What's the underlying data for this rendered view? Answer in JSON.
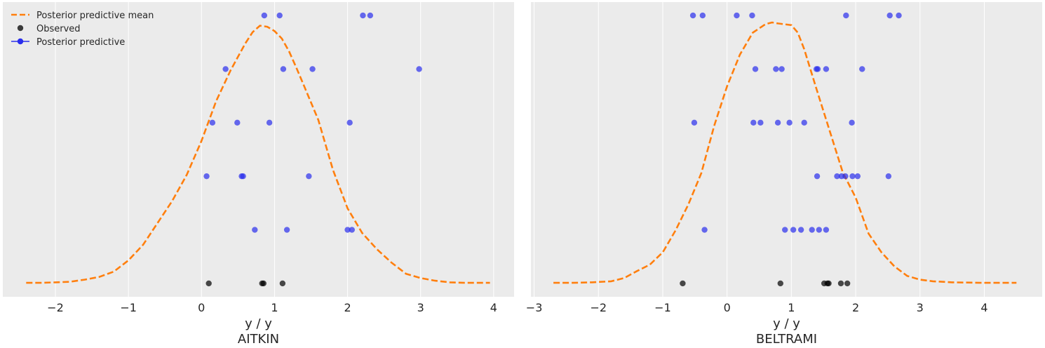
{
  "chart_data": [
    {
      "type": "scatter",
      "xlabel": "y / y",
      "title": "AITKIN",
      "xlim": [
        -2.72,
        4.28
      ],
      "ylim": [
        -0.25,
        5.25
      ],
      "xticks": [
        -2,
        -1,
        0,
        1,
        2,
        3,
        4
      ],
      "xtick_labels": [
        "−2",
        "−1",
        "0",
        "1",
        "2",
        "3",
        "4"
      ],
      "yticks": [],
      "grid": true,
      "background": "#ebebeb",
      "legend": {
        "placement": "top-left",
        "entries": [
          {
            "label": "Posterior predictive mean",
            "marker": "dashed-line",
            "color": "#ff7f0e"
          },
          {
            "label": "Observed",
            "marker": "dot",
            "color": "#000000"
          },
          {
            "label": "Posterior predictive",
            "marker": "line-dot",
            "color": "#2a2eec"
          }
        ]
      },
      "series": [
        {
          "name": "Posterior predictive mean",
          "kind": "line",
          "color": "#ff7f0e",
          "style": "dashed",
          "x": [
            -2.4,
            -2.2,
            -2.0,
            -1.8,
            -1.6,
            -1.4,
            -1.2,
            -1.0,
            -0.8,
            -0.6,
            -0.4,
            -0.2,
            0.0,
            0.2,
            0.4,
            0.6,
            0.7,
            0.8,
            0.9,
            1.0,
            1.1,
            1.2,
            1.3,
            1.4,
            1.6,
            1.8,
            2.0,
            2.2,
            2.4,
            2.6,
            2.8,
            3.0,
            3.2,
            3.4,
            3.6,
            3.8,
            3.95
          ],
          "y": [
            0.01,
            0.01,
            0.02,
            0.03,
            0.07,
            0.12,
            0.22,
            0.43,
            0.72,
            1.13,
            1.54,
            2.03,
            2.66,
            3.4,
            3.98,
            4.48,
            4.69,
            4.81,
            4.79,
            4.71,
            4.57,
            4.33,
            4.02,
            3.7,
            3.05,
            2.12,
            1.4,
            0.94,
            0.64,
            0.39,
            0.18,
            0.1,
            0.05,
            0.02,
            0.01,
            0.01,
            0.01
          ]
        },
        {
          "name": "Observed",
          "kind": "points",
          "color": "#000000",
          "x": [
            0.1,
            0.83,
            0.85,
            1.11
          ],
          "y": [
            0,
            0,
            0,
            0
          ]
        },
        {
          "name": "Posterior predictive",
          "kind": "points",
          "color": "#2a2eec",
          "x": [
            0.73,
            1.17,
            2.0,
            2.06,
            0.07,
            0.55,
            0.57,
            1.47,
            0.15,
            0.49,
            0.93,
            2.03,
            0.33,
            1.12,
            1.52,
            2.98,
            0.86,
            1.07,
            2.21,
            2.31
          ],
          "y": [
            1,
            1,
            1,
            1,
            2,
            2,
            2,
            2,
            3,
            3,
            3,
            3,
            4,
            4,
            4,
            4,
            5,
            5,
            5,
            5
          ]
        }
      ]
    },
    {
      "type": "scatter",
      "xlabel": "y / y",
      "title": "BELTRAMI",
      "xlim": [
        -3.05,
        4.9
      ],
      "ylim": [
        -0.25,
        5.25
      ],
      "xticks": [
        -3,
        -2,
        -1,
        0,
        1,
        2,
        3,
        4
      ],
      "xtick_labels": [
        "−3",
        "−2",
        "−1",
        "0",
        "1",
        "2",
        "3",
        "4"
      ],
      "yticks": [],
      "grid": true,
      "background": "#ebebeb",
      "series": [
        {
          "name": "Posterior predictive mean",
          "kind": "line",
          "color": "#ff7f0e",
          "style": "dashed",
          "x": [
            -2.7,
            -2.4,
            -2.1,
            -1.8,
            -1.6,
            -1.4,
            -1.2,
            -1.0,
            -0.8,
            -0.6,
            -0.4,
            -0.2,
            0.0,
            0.2,
            0.4,
            0.6,
            0.7,
            0.8,
            1.0,
            1.1,
            1.2,
            1.4,
            1.6,
            1.8,
            2.0,
            2.2,
            2.4,
            2.6,
            2.8,
            3.0,
            3.2,
            3.5,
            4.0,
            4.5
          ],
          "y": [
            0.01,
            0.01,
            0.02,
            0.04,
            0.1,
            0.23,
            0.35,
            0.58,
            0.99,
            1.48,
            2.06,
            2.94,
            3.68,
            4.27,
            4.68,
            4.84,
            4.87,
            4.85,
            4.82,
            4.68,
            4.37,
            3.59,
            2.83,
            2.07,
            1.6,
            0.93,
            0.58,
            0.32,
            0.14,
            0.07,
            0.04,
            0.02,
            0.01,
            0.01
          ]
        },
        {
          "name": "Observed",
          "kind": "points",
          "color": "#000000",
          "x": [
            -0.69,
            0.83,
            1.51,
            1.56,
            1.58,
            1.77,
            1.87
          ],
          "y": [
            0,
            0,
            0,
            0,
            0,
            0,
            0
          ]
        },
        {
          "name": "Posterior predictive",
          "kind": "points",
          "color": "#2a2eec",
          "x": [
            -0.35,
            0.9,
            1.03,
            1.15,
            1.32,
            1.43,
            1.54,
            1.4,
            1.71,
            1.78,
            1.84,
            1.95,
            2.03,
            2.51,
            -0.51,
            0.41,
            0.52,
            0.79,
            0.97,
            1.2,
            1.94,
            0.44,
            0.76,
            0.85,
            1.39,
            1.41,
            1.54,
            2.1,
            -0.53,
            -0.38,
            0.15,
            0.39,
            1.85,
            2.53,
            2.67
          ],
          "y": [
            1,
            1,
            1,
            1,
            1,
            1,
            1,
            2,
            2,
            2,
            2,
            2,
            2,
            2,
            3,
            3,
            3,
            3,
            3,
            3,
            3,
            4,
            4,
            4,
            4,
            4,
            4,
            4,
            5,
            5,
            5,
            5,
            5,
            5,
            5
          ]
        }
      ]
    }
  ]
}
